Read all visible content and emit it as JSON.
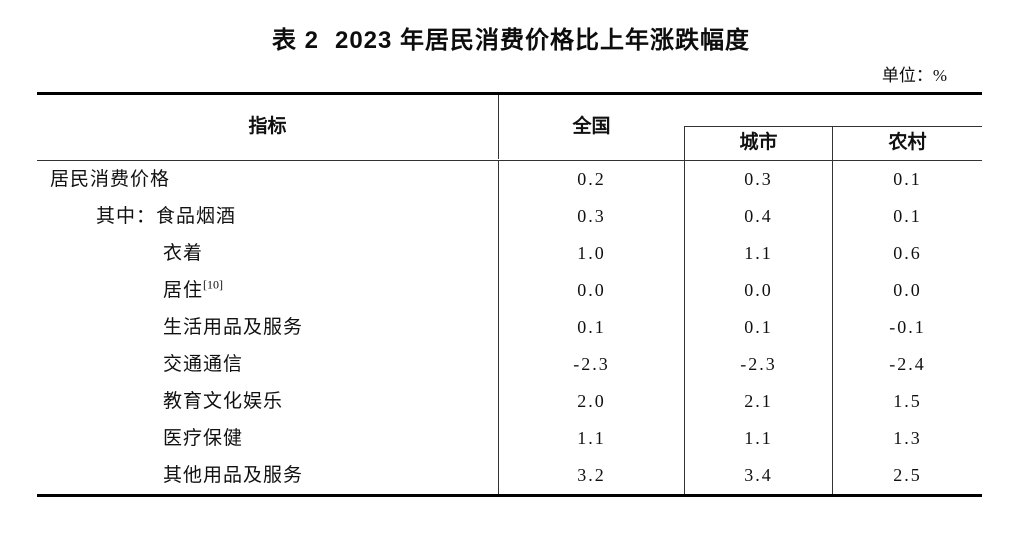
{
  "title": {
    "table_no": "表 2",
    "text": "2023 年居民消费价格比上年涨跌幅度"
  },
  "unit_label": "单位：%",
  "table": {
    "headers": {
      "indicator": "指标",
      "national": "全国",
      "urban": "城市",
      "rural": "农村"
    },
    "rows": [
      {
        "indicator": "居民消费价格",
        "national": "0.2",
        "urban": "0.3",
        "rural": "0.1"
      },
      {
        "prefix": "其中：",
        "indicator": "食品烟酒",
        "national": "0.3",
        "urban": "0.4",
        "rural": "0.1"
      },
      {
        "indicator": "衣着",
        "national": "1.0",
        "urban": "1.1",
        "rural": "0.6"
      },
      {
        "indicator": "居住",
        "footnote": "[10]",
        "national": "0.0",
        "urban": "0.0",
        "rural": "0.0"
      },
      {
        "indicator": "生活用品及服务",
        "national": "0.1",
        "urban": "0.1",
        "rural": "-0.1"
      },
      {
        "indicator": "交通通信",
        "national": "-2.3",
        "urban": "-2.3",
        "rural": "-2.4"
      },
      {
        "indicator": "教育文化娱乐",
        "national": "2.0",
        "urban": "2.1",
        "rural": "1.5"
      },
      {
        "indicator": "医疗保健",
        "national": "1.1",
        "urban": "1.1",
        "rural": "1.3"
      },
      {
        "indicator": "其他用品及服务",
        "national": "3.2",
        "urban": "3.4",
        "rural": "2.5"
      }
    ]
  },
  "colors": {
    "text": "#111111",
    "rule_thick": "#000000",
    "rule_thin": "#333333",
    "background": "#ffffff"
  },
  "chart_data": {
    "type": "table",
    "title": "表 2 2023 年居民消费价格比上年涨跌幅度",
    "unit": "%",
    "columns": [
      "指标",
      "全国",
      "城市",
      "农村"
    ],
    "rows": [
      [
        "居民消费价格",
        0.2,
        0.3,
        0.1
      ],
      [
        "其中：食品烟酒",
        0.3,
        0.4,
        0.1
      ],
      [
        "衣着",
        1.0,
        1.1,
        0.6
      ],
      [
        "居住[10]",
        0.0,
        0.0,
        0.0
      ],
      [
        "生活用品及服务",
        0.1,
        0.1,
        -0.1
      ],
      [
        "交通通信",
        -2.3,
        -2.3,
        -2.4
      ],
      [
        "教育文化娱乐",
        2.0,
        2.1,
        1.5
      ],
      [
        "医疗保健",
        1.1,
        1.1,
        1.3
      ],
      [
        "其他用品及服务",
        3.2,
        3.4,
        2.5
      ]
    ]
  }
}
